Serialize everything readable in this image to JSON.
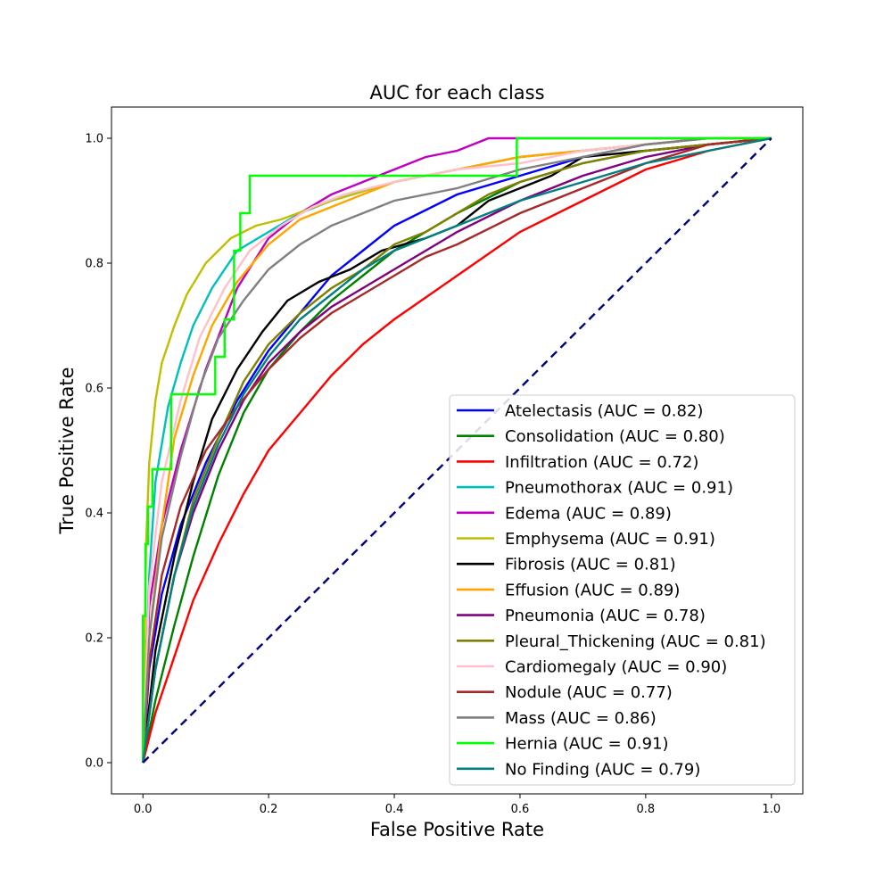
{
  "chart_data": {
    "type": "line",
    "title": "AUC for each class",
    "xlabel": "False Positive Rate",
    "ylabel": "True Positive Rate",
    "xlim": [
      -0.05,
      1.05
    ],
    "ylim": [
      -0.05,
      1.05
    ],
    "xticks": [
      0.0,
      0.2,
      0.4,
      0.6,
      0.8,
      1.0
    ],
    "yticks": [
      0.0,
      0.2,
      0.4,
      0.6,
      0.8,
      1.0
    ],
    "tick_labels": [
      "0.0",
      "0.2",
      "0.4",
      "0.6",
      "0.8",
      "1.0"
    ],
    "grid": false,
    "legend_position": "lower-right",
    "diagonal": {
      "x": [
        0,
        1
      ],
      "y": [
        0,
        1
      ],
      "color": "#000080",
      "style": "dashed"
    },
    "series": [
      {
        "name": "Atelectasis (AUC = 0.82)",
        "color": "#0000ff",
        "x": [
          0,
          0.01,
          0.03,
          0.06,
          0.1,
          0.15,
          0.2,
          0.25,
          0.3,
          0.35,
          0.4,
          0.5,
          0.6,
          0.7,
          0.8,
          0.9,
          1.0
        ],
        "y": [
          0,
          0.15,
          0.27,
          0.38,
          0.48,
          0.58,
          0.66,
          0.72,
          0.78,
          0.82,
          0.86,
          0.91,
          0.94,
          0.97,
          0.99,
          1.0,
          1.0
        ]
      },
      {
        "name": "Consolidation (AUC = 0.80)",
        "color": "#008000",
        "x": [
          0,
          0.02,
          0.05,
          0.08,
          0.12,
          0.16,
          0.2,
          0.25,
          0.3,
          0.35,
          0.4,
          0.5,
          0.6,
          0.7,
          0.8,
          0.9,
          1.0
        ],
        "y": [
          0,
          0.1,
          0.22,
          0.33,
          0.46,
          0.56,
          0.63,
          0.69,
          0.74,
          0.78,
          0.82,
          0.88,
          0.93,
          0.96,
          0.98,
          0.99,
          1.0
        ]
      },
      {
        "name": "Infiltration (AUC = 0.72)",
        "color": "#ff0000",
        "x": [
          0,
          0.02,
          0.05,
          0.08,
          0.12,
          0.16,
          0.2,
          0.25,
          0.3,
          0.35,
          0.4,
          0.5,
          0.6,
          0.7,
          0.8,
          0.9,
          1.0
        ],
        "y": [
          0,
          0.08,
          0.17,
          0.26,
          0.35,
          0.43,
          0.5,
          0.56,
          0.62,
          0.67,
          0.71,
          0.78,
          0.85,
          0.9,
          0.95,
          0.98,
          1.0
        ]
      },
      {
        "name": "Pneumothorax (AUC = 0.91)",
        "color": "#00bfbf",
        "x": [
          0,
          0.01,
          0.02,
          0.04,
          0.06,
          0.08,
          0.11,
          0.15,
          0.2,
          0.25,
          0.3,
          0.4,
          0.5,
          0.6,
          0.7,
          0.8,
          0.9,
          1.0
        ],
        "y": [
          0,
          0.3,
          0.45,
          0.57,
          0.64,
          0.7,
          0.76,
          0.82,
          0.85,
          0.88,
          0.9,
          0.93,
          0.95,
          0.97,
          0.98,
          0.99,
          1.0,
          1.0
        ]
      },
      {
        "name": "Edema (AUC = 0.89)",
        "color": "#bf00bf",
        "x": [
          0,
          0.01,
          0.03,
          0.06,
          0.1,
          0.15,
          0.2,
          0.25,
          0.3,
          0.35,
          0.4,
          0.45,
          0.5,
          0.55,
          0.6,
          0.7,
          0.8,
          0.9,
          1.0
        ],
        "y": [
          0,
          0.25,
          0.38,
          0.5,
          0.63,
          0.76,
          0.84,
          0.88,
          0.91,
          0.93,
          0.95,
          0.97,
          0.98,
          1.0,
          1.0,
          1.0,
          1.0,
          1.0,
          1.0
        ]
      },
      {
        "name": "Emphysema (AUC = 0.91)",
        "color": "#bfbf00",
        "x": [
          0,
          0.005,
          0.01,
          0.02,
          0.03,
          0.05,
          0.07,
          0.1,
          0.14,
          0.18,
          0.22,
          0.3,
          0.4,
          0.5,
          0.6,
          0.7,
          0.8,
          0.9,
          1.0
        ],
        "y": [
          0,
          0.35,
          0.48,
          0.58,
          0.64,
          0.7,
          0.75,
          0.8,
          0.84,
          0.86,
          0.87,
          0.9,
          0.93,
          0.95,
          0.97,
          0.98,
          0.99,
          1.0,
          1.0
        ]
      },
      {
        "name": "Fibrosis (AUC = 0.81)",
        "color": "#000000",
        "x": [
          0,
          0.02,
          0.05,
          0.08,
          0.11,
          0.15,
          0.19,
          0.23,
          0.28,
          0.33,
          0.38,
          0.45,
          0.5,
          0.55,
          0.6,
          0.65,
          0.7,
          0.8,
          0.9,
          1.0
        ],
        "y": [
          0,
          0.18,
          0.33,
          0.45,
          0.55,
          0.63,
          0.69,
          0.74,
          0.77,
          0.79,
          0.82,
          0.84,
          0.86,
          0.9,
          0.92,
          0.94,
          0.97,
          0.98,
          0.99,
          1.0
        ]
      },
      {
        "name": "Effusion (AUC = 0.89)",
        "color": "#ffa500",
        "x": [
          0,
          0.01,
          0.03,
          0.05,
          0.08,
          0.11,
          0.15,
          0.2,
          0.25,
          0.3,
          0.4,
          0.5,
          0.6,
          0.7,
          0.8,
          0.9,
          1.0
        ],
        "y": [
          0,
          0.2,
          0.38,
          0.52,
          0.62,
          0.7,
          0.77,
          0.83,
          0.87,
          0.89,
          0.93,
          0.95,
          0.97,
          0.98,
          0.99,
          1.0,
          1.0
        ]
      },
      {
        "name": "Pneumonia (AUC = 0.78)",
        "color": "#800080",
        "x": [
          0,
          0.02,
          0.05,
          0.08,
          0.12,
          0.16,
          0.2,
          0.25,
          0.3,
          0.35,
          0.4,
          0.45,
          0.5,
          0.6,
          0.7,
          0.8,
          0.9,
          1.0
        ],
        "y": [
          0,
          0.15,
          0.3,
          0.4,
          0.5,
          0.58,
          0.64,
          0.69,
          0.73,
          0.76,
          0.79,
          0.82,
          0.85,
          0.9,
          0.94,
          0.97,
          0.99,
          1.0
        ]
      },
      {
        "name": "Pleural_Thickening (AUC = 0.81)",
        "color": "#808000",
        "x": [
          0,
          0.02,
          0.05,
          0.08,
          0.12,
          0.16,
          0.2,
          0.25,
          0.3,
          0.35,
          0.4,
          0.45,
          0.5,
          0.55,
          0.6,
          0.7,
          0.8,
          0.9,
          1.0
        ],
        "y": [
          0,
          0.15,
          0.3,
          0.42,
          0.52,
          0.61,
          0.67,
          0.72,
          0.76,
          0.79,
          0.83,
          0.85,
          0.88,
          0.91,
          0.93,
          0.96,
          0.98,
          0.99,
          1.0
        ]
      },
      {
        "name": "Cardiomegaly (AUC = 0.90)",
        "color": "#ffc0cb",
        "x": [
          0,
          0.01,
          0.03,
          0.06,
          0.09,
          0.13,
          0.17,
          0.22,
          0.27,
          0.32,
          0.4,
          0.5,
          0.6,
          0.7,
          0.8,
          0.9,
          1.0
        ],
        "y": [
          0,
          0.28,
          0.45,
          0.58,
          0.68,
          0.76,
          0.82,
          0.86,
          0.89,
          0.91,
          0.93,
          0.95,
          0.96,
          0.98,
          0.99,
          1.0,
          1.0
        ]
      },
      {
        "name": "Nodule (AUC = 0.77)",
        "color": "#a52a2a",
        "x": [
          0,
          0.01,
          0.03,
          0.06,
          0.1,
          0.15,
          0.2,
          0.25,
          0.3,
          0.35,
          0.4,
          0.45,
          0.5,
          0.6,
          0.7,
          0.8,
          0.9,
          1.0
        ],
        "y": [
          0,
          0.16,
          0.3,
          0.41,
          0.5,
          0.57,
          0.63,
          0.68,
          0.72,
          0.75,
          0.78,
          0.81,
          0.83,
          0.88,
          0.92,
          0.96,
          0.99,
          1.0
        ]
      },
      {
        "name": "Mass (AUC = 0.86)",
        "color": "#808080",
        "x": [
          0,
          0.01,
          0.03,
          0.06,
          0.09,
          0.12,
          0.16,
          0.2,
          0.25,
          0.3,
          0.35,
          0.4,
          0.5,
          0.6,
          0.7,
          0.8,
          0.9,
          1.0
        ],
        "y": [
          0,
          0.2,
          0.36,
          0.49,
          0.6,
          0.68,
          0.74,
          0.79,
          0.83,
          0.86,
          0.88,
          0.9,
          0.92,
          0.95,
          0.97,
          0.99,
          1.0,
          1.0
        ]
      },
      {
        "name": "Hernia (AUC = 0.91)",
        "color": "#00ff00",
        "x": [
          0,
          0,
          0.004,
          0.004,
          0.008,
          0.008,
          0.015,
          0.015,
          0.045,
          0.045,
          0.115,
          0.115,
          0.13,
          0.13,
          0.145,
          0.145,
          0.155,
          0.155,
          0.17,
          0.17,
          0.595,
          0.595,
          1.0
        ],
        "y": [
          0,
          0.235,
          0.235,
          0.35,
          0.35,
          0.41,
          0.41,
          0.47,
          0.47,
          0.59,
          0.59,
          0.65,
          0.65,
          0.71,
          0.71,
          0.82,
          0.82,
          0.88,
          0.88,
          0.94,
          0.94,
          1.0,
          1.0
        ]
      },
      {
        "name": "No Finding (AUC = 0.79)",
        "color": "#008080",
        "x": [
          0,
          0.02,
          0.05,
          0.08,
          0.12,
          0.16,
          0.2,
          0.25,
          0.3,
          0.35,
          0.4,
          0.45,
          0.5,
          0.6,
          0.7,
          0.8,
          0.9,
          1.0
        ],
        "y": [
          0,
          0.15,
          0.3,
          0.41,
          0.51,
          0.59,
          0.65,
          0.71,
          0.75,
          0.79,
          0.82,
          0.84,
          0.86,
          0.9,
          0.93,
          0.96,
          0.98,
          1.0
        ]
      }
    ]
  }
}
